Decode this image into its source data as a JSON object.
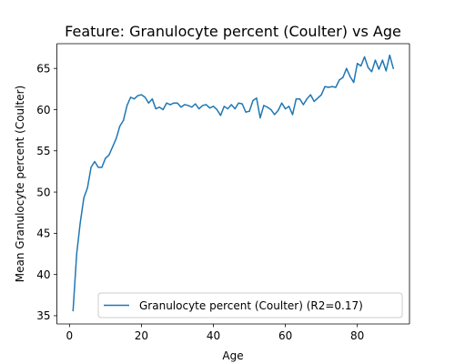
{
  "chart_data": {
    "type": "line",
    "title": "Feature: Granulocyte percent (Coulter) vs Age",
    "xlabel": "Age",
    "ylabel": "Mean Granulocyte percent (Coulter)",
    "xlim": [
      -3.5,
      94.5
    ],
    "ylim": [
      34.0,
      68.0
    ],
    "xticks": [
      0,
      20,
      40,
      60,
      80
    ],
    "yticks": [
      35,
      40,
      45,
      50,
      55,
      60,
      65
    ],
    "grid": false,
    "legend_position": "lower-right",
    "series": [
      {
        "name": "Granulocyte percent (Coulter) (R2=0.17)",
        "color": "#1f77b4",
        "x": [
          1,
          2,
          3,
          4,
          5,
          6,
          7,
          8,
          9,
          10,
          11,
          12,
          13,
          14,
          15,
          16,
          17,
          18,
          19,
          20,
          21,
          22,
          23,
          24,
          25,
          26,
          27,
          28,
          29,
          30,
          31,
          32,
          33,
          34,
          35,
          36,
          37,
          38,
          39,
          40,
          41,
          42,
          43,
          44,
          45,
          46,
          47,
          48,
          49,
          50,
          51,
          52,
          53,
          54,
          55,
          56,
          57,
          58,
          59,
          60,
          61,
          62,
          63,
          64,
          65,
          66,
          67,
          68,
          69,
          70,
          71,
          72,
          73,
          74,
          75,
          76,
          77,
          78,
          79,
          80,
          81,
          82,
          83,
          84,
          85,
          86,
          87,
          88,
          89,
          90
        ],
        "y": [
          35.6,
          42.5,
          46.3,
          49.3,
          50.5,
          53.0,
          53.7,
          53.0,
          53.0,
          54.1,
          54.5,
          55.5,
          56.5,
          58.0,
          58.7,
          60.5,
          61.5,
          61.3,
          61.7,
          61.8,
          61.5,
          60.8,
          61.3,
          60.1,
          60.3,
          60.0,
          60.8,
          60.6,
          60.8,
          60.8,
          60.3,
          60.6,
          60.5,
          60.3,
          60.7,
          60.1,
          60.5,
          60.6,
          60.2,
          60.4,
          60.0,
          59.3,
          60.4,
          60.1,
          60.6,
          60.1,
          60.8,
          60.7,
          59.7,
          59.8,
          61.1,
          61.4,
          59.0,
          60.5,
          60.3,
          60.0,
          59.4,
          59.9,
          60.8,
          60.1,
          60.4,
          59.4,
          61.3,
          61.3,
          60.6,
          61.3,
          61.8,
          61.0,
          61.4,
          61.8,
          62.8,
          62.7,
          62.8,
          62.7,
          63.6,
          63.9,
          65.0,
          64.0,
          63.3,
          65.6,
          65.3,
          66.4,
          65.1,
          64.6,
          66.0,
          64.9,
          66.0,
          64.7,
          66.6,
          65.0
        ]
      }
    ]
  }
}
